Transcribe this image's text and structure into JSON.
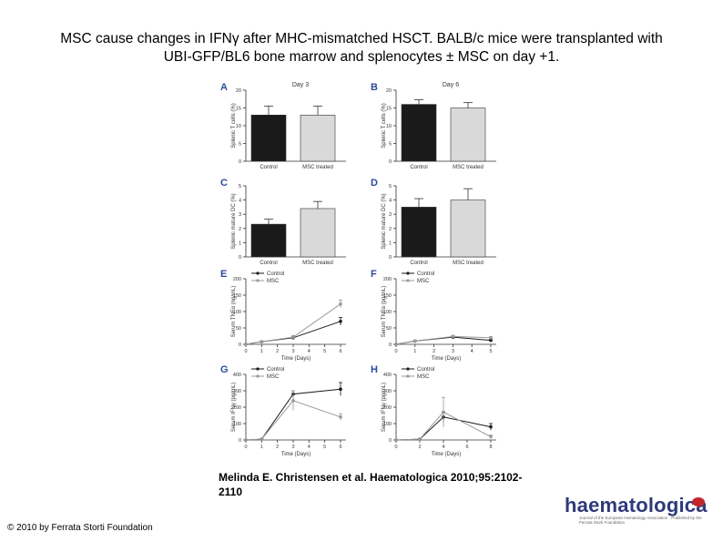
{
  "slide": {
    "title_line1": "MSC cause changes in IFNγ after MHC-mismatched HSCT. BALB/c mice were transplanted with",
    "title_line2": "UBI-GFP/BL6 bone marrow and splenocytes ± MSC on day +1.",
    "citation": "Melinda E. Christensen et al. Haematologica 2010;95:2102-2110",
    "copyright": "© 2010 by Ferrata Storti Foundation",
    "logo_text": "haematologica",
    "logo_subtitle": "Journal of the European Hematology Association · Published by the Ferrata Storti Foundation"
  },
  "colors": {
    "control": "#1a1a1a",
    "msc": "#999999",
    "msc_bar": "#d9d9d9"
  },
  "chart_data": [
    {
      "panel": "A",
      "type": "bar",
      "title": "Day 3",
      "ylabel": "Splenic T cells (%)",
      "categories": [
        "Control",
        "MSC treated"
      ],
      "values": [
        13,
        13
      ],
      "errors": [
        2.5,
        2.5
      ],
      "ylim": [
        0,
        20
      ],
      "yticks": [
        0,
        5,
        10,
        15,
        20
      ]
    },
    {
      "panel": "B",
      "type": "bar",
      "title": "Day 6",
      "ylabel": "Splenic T cells (%)",
      "categories": [
        "Control",
        "MSC treated"
      ],
      "values": [
        16,
        15
      ],
      "errors": [
        1.3,
        1.5
      ],
      "ylim": [
        0,
        20
      ],
      "yticks": [
        0,
        5,
        10,
        15,
        20
      ]
    },
    {
      "panel": "C",
      "type": "bar",
      "title": "",
      "ylabel": "Splenic mature DC (%)",
      "categories": [
        "Control",
        "MSC treated"
      ],
      "values": [
        2.3,
        3.4
      ],
      "errors": [
        0.35,
        0.5
      ],
      "ylim": [
        0,
        5
      ],
      "yticks": [
        0,
        1,
        2,
        3,
        4,
        5
      ]
    },
    {
      "panel": "D",
      "type": "bar",
      "title": "",
      "ylabel": "Splenic mature DC (%)",
      "categories": [
        "Control",
        "MSC treated"
      ],
      "values": [
        3.5,
        4.0
      ],
      "errors": [
        0.6,
        0.8
      ],
      "ylim": [
        0,
        5
      ],
      "yticks": [
        0,
        1,
        2,
        3,
        4,
        5
      ]
    },
    {
      "panel": "E",
      "type": "line",
      "ylabel": "Serum TNFα (ng/mL)",
      "xlabel": "Time (Days)",
      "xlim": [
        0,
        6
      ],
      "xticks": [
        0,
        1,
        2,
        3,
        4,
        5,
        6
      ],
      "ylim": [
        0,
        200
      ],
      "yticks": [
        0,
        50,
        100,
        150,
        200
      ],
      "series": [
        {
          "name": "Control",
          "x": [
            0,
            1,
            3,
            6
          ],
          "y": [
            0,
            8,
            20,
            70
          ],
          "err": [
            0,
            2,
            4,
            12
          ]
        },
        {
          "name": "MSC",
          "x": [
            0,
            1,
            3,
            6
          ],
          "y": [
            0,
            8,
            22,
            123
          ],
          "err": [
            0,
            2,
            5,
            12
          ]
        }
      ]
    },
    {
      "panel": "F",
      "type": "line",
      "ylabel": "Serum TNFα (pg/mL)",
      "xlabel": "Time (Days)",
      "xlim": [
        0,
        5
      ],
      "xticks": [
        0,
        1,
        2,
        3,
        4,
        5
      ],
      "ylim": [
        0,
        200
      ],
      "yticks": [
        0,
        50,
        100,
        150,
        200
      ],
      "series": [
        {
          "name": "Control",
          "x": [
            0,
            1,
            3,
            5
          ],
          "y": [
            0,
            10,
            22,
            12
          ],
          "err": [
            0,
            2,
            3,
            3
          ]
        },
        {
          "name": "MSC",
          "x": [
            0,
            1,
            3,
            5
          ],
          "y": [
            0,
            10,
            24,
            20
          ],
          "err": [
            0,
            2,
            3,
            4
          ]
        }
      ]
    },
    {
      "panel": "G",
      "type": "line",
      "ylabel": "Serum IFNγ (pg/mL)",
      "xlabel": "Time (Days)",
      "xlim": [
        0,
        6
      ],
      "xticks": [
        0,
        1,
        2,
        3,
        4,
        5,
        6
      ],
      "ylim": [
        0,
        400
      ],
      "yticks": [
        0,
        100,
        200,
        300,
        400
      ],
      "series": [
        {
          "name": "Control",
          "x": [
            0,
            1,
            3,
            6
          ],
          "y": [
            0,
            5,
            280,
            310
          ],
          "err": [
            0,
            2,
            20,
            40
          ]
        },
        {
          "name": "MSC",
          "x": [
            0,
            1,
            3,
            6
          ],
          "y": [
            0,
            5,
            240,
            140
          ],
          "err": [
            0,
            2,
            60,
            20
          ]
        }
      ]
    },
    {
      "panel": "H",
      "type": "line",
      "ylabel": "Serum IFNγ (pg/mL)",
      "xlabel": "Time (Days)",
      "xlim": [
        0,
        8
      ],
      "xticks": [
        0,
        2,
        4,
        6,
        8
      ],
      "ylim": [
        0,
        400
      ],
      "yticks": [
        0,
        100,
        200,
        300,
        400
      ],
      "series": [
        {
          "name": "Control",
          "x": [
            0,
            2,
            4,
            8
          ],
          "y": [
            0,
            5,
            140,
            80
          ],
          "err": [
            0,
            2,
            30,
            20
          ]
        },
        {
          "name": "MSC",
          "x": [
            0,
            2,
            4,
            8
          ],
          "y": [
            0,
            5,
            170,
            20
          ],
          "err": [
            0,
            2,
            90,
            10
          ]
        }
      ]
    }
  ]
}
